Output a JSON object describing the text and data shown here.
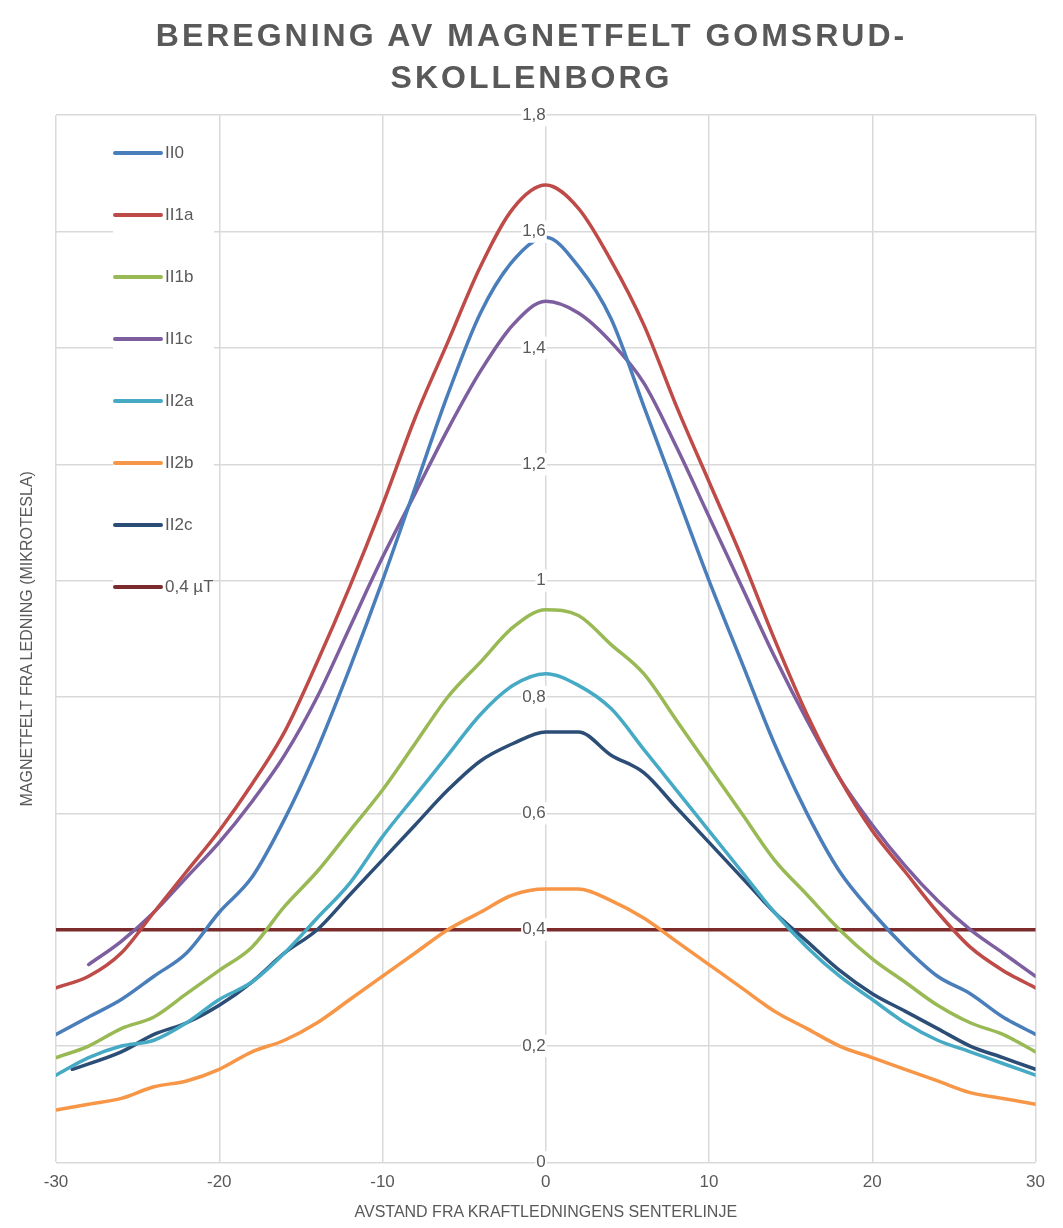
{
  "chart_data": {
    "type": "line",
    "title": "BEREGNING AV MAGNETFELT GOMSRUD-SKOLLENBORG",
    "xlabel": "AVSTAND FRA KRAFTLEDNINGENS SENTERLINJE",
    "ylabel": "MAGNETFELT FRA LEDNING (MIKROTESLA)",
    "x": [
      -30,
      -28,
      -26,
      -24,
      -22,
      -20,
      -18,
      -16,
      -14,
      -12,
      -10,
      -8,
      -6,
      -4,
      -2,
      0,
      2,
      4,
      6,
      8,
      10,
      12,
      14,
      16,
      18,
      20,
      22,
      24,
      26,
      28,
      30
    ],
    "series": [
      {
        "name": "II0",
        "color": "#4a7ebb",
        "values": [
          0.22,
          0.25,
          0.28,
          0.32,
          0.36,
          0.43,
          0.49,
          0.59,
          0.71,
          0.85,
          1.0,
          1.16,
          1.32,
          1.46,
          1.55,
          1.59,
          1.54,
          1.45,
          1.3,
          1.15,
          1.0,
          0.86,
          0.72,
          0.6,
          0.5,
          0.43,
          0.37,
          0.32,
          0.29,
          0.25,
          0.22
        ]
      },
      {
        "name": "II1a",
        "color": "#be4b48",
        "values": [
          0.3,
          0.32,
          0.36,
          0.43,
          0.5,
          0.57,
          0.65,
          0.74,
          0.86,
          0.99,
          1.13,
          1.28,
          1.41,
          1.54,
          1.64,
          1.68,
          1.64,
          1.55,
          1.44,
          1.3,
          1.17,
          1.04,
          0.9,
          0.77,
          0.66,
          0.57,
          0.5,
          0.43,
          0.37,
          0.33,
          0.3
        ]
      },
      {
        "name": "II1b",
        "color": "#98b954",
        "values": [
          0.18,
          0.2,
          0.23,
          0.25,
          0.29,
          0.33,
          0.37,
          0.44,
          0.5,
          0.57,
          0.64,
          0.72,
          0.8,
          0.86,
          0.92,
          0.95,
          0.94,
          0.89,
          0.84,
          0.76,
          0.68,
          0.6,
          0.52,
          0.46,
          0.4,
          0.35,
          0.31,
          0.27,
          0.24,
          0.22,
          0.19
        ]
      },
      {
        "name": "II1c",
        "color": "#7d5fa0",
        "x": [
          -28,
          -26,
          -24,
          -22,
          -20,
          -18,
          -16,
          -14,
          -12,
          -10,
          -8,
          -6,
          -4,
          -2,
          0,
          2,
          4,
          6,
          8,
          10,
          12,
          14,
          16,
          18,
          20,
          22,
          24,
          26,
          28,
          30
        ],
        "values": [
          0.34,
          0.38,
          0.43,
          0.49,
          0.55,
          0.62,
          0.7,
          0.8,
          0.92,
          1.04,
          1.15,
          1.26,
          1.36,
          1.44,
          1.48,
          1.46,
          1.41,
          1.34,
          1.23,
          1.11,
          0.99,
          0.87,
          0.76,
          0.66,
          0.58,
          0.51,
          0.45,
          0.4,
          0.36,
          0.32
        ]
      },
      {
        "name": "II2a",
        "color": "#46aac5",
        "values": [
          0.15,
          0.18,
          0.2,
          0.21,
          0.24,
          0.28,
          0.31,
          0.36,
          0.42,
          0.48,
          0.56,
          0.63,
          0.7,
          0.77,
          0.82,
          0.84,
          0.82,
          0.78,
          0.71,
          0.64,
          0.57,
          0.5,
          0.43,
          0.37,
          0.32,
          0.28,
          0.24,
          0.21,
          0.19,
          0.17,
          0.15
        ]
      },
      {
        "name": "II2b",
        "color": "#f79646",
        "values": [
          0.09,
          0.1,
          0.11,
          0.13,
          0.14,
          0.16,
          0.19,
          0.21,
          0.24,
          0.28,
          0.32,
          0.36,
          0.4,
          0.43,
          0.46,
          0.47,
          0.47,
          0.45,
          0.42,
          0.38,
          0.34,
          0.3,
          0.26,
          0.23,
          0.2,
          0.18,
          0.16,
          0.14,
          0.12,
          0.11,
          0.1
        ]
      },
      {
        "name": "II2c",
        "color": "#2c4d75",
        "x": [
          -29,
          -26,
          -24,
          -22,
          -20,
          -18,
          -16,
          -14,
          -12,
          -10,
          -8,
          -6,
          -4,
          -2,
          0,
          2,
          4,
          6,
          8,
          10,
          12,
          14,
          16,
          18,
          20,
          22,
          24,
          26,
          28,
          30
        ],
        "values": [
          0.16,
          0.19,
          0.22,
          0.24,
          0.27,
          0.31,
          0.36,
          0.4,
          0.46,
          0.52,
          0.58,
          0.64,
          0.69,
          0.72,
          0.74,
          0.74,
          0.7,
          0.67,
          0.61,
          0.55,
          0.49,
          0.43,
          0.38,
          0.33,
          0.29,
          0.26,
          0.23,
          0.2,
          0.18,
          0.16
        ]
      },
      {
        "name": "0,4 µT",
        "color": "#7b2b2b",
        "x": [
          -30,
          30
        ],
        "values": [
          0.4,
          0.4
        ]
      }
    ],
    "xlim": [
      -30,
      30
    ],
    "xticks": [
      -30,
      -20,
      -10,
      0,
      10,
      20,
      30
    ],
    "ylim": [
      0,
      1.8
    ],
    "yticks": [
      0,
      {
        "value": 0.2,
        "label": "0,2"
      },
      {
        "value": 0.4,
        "label": "0,4"
      },
      {
        "value": 0.6,
        "label": "0,6"
      },
      {
        "value": 0.8,
        "label": "0,8"
      },
      1,
      {
        "value": 1.2,
        "label": "1,2"
      },
      {
        "value": 1.4,
        "label": "1,4"
      },
      {
        "value": 1.6,
        "label": "1,6"
      },
      {
        "value": 1.8,
        "label": "1,8"
      }
    ],
    "grid": true,
    "legend": "top left",
    "marker": "none",
    "line_style": "solid"
  }
}
